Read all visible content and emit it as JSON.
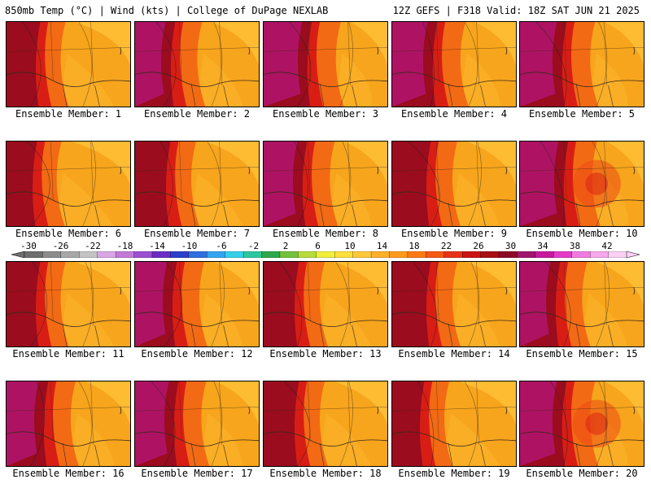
{
  "header": {
    "left": "850mb Temp (°C) | Wind (kts) | College of DuPage NEXLAB",
    "right": "12Z GEFS | F318 Valid: 18Z SAT JUN 21 2025"
  },
  "members": [
    {
      "label": "Ensemble Member: 1",
      "west_intensity": 0.55,
      "hot_core": false
    },
    {
      "label": "Ensemble Member: 2",
      "west_intensity": 0.75,
      "hot_core": false
    },
    {
      "label": "Ensemble Member: 3",
      "west_intensity": 1.0,
      "hot_core": false
    },
    {
      "label": "Ensemble Member: 4",
      "west_intensity": 0.9,
      "hot_core": false
    },
    {
      "label": "Ensemble Member: 5",
      "west_intensity": 0.95,
      "hot_core": false
    },
    {
      "label": "Ensemble Member: 6",
      "west_intensity": 0.45,
      "hot_core": false
    },
    {
      "label": "Ensemble Member: 7",
      "west_intensity": 0.6,
      "hot_core": false
    },
    {
      "label": "Ensemble Member: 8",
      "west_intensity": 0.85,
      "hot_core": false
    },
    {
      "label": "Ensemble Member: 9",
      "west_intensity": 0.7,
      "hot_core": false
    },
    {
      "label": "Ensemble Member: 10",
      "west_intensity": 1.0,
      "hot_core": true
    },
    {
      "label": "Ensemble Member: 11",
      "west_intensity": 0.55,
      "hot_core": false
    },
    {
      "label": "Ensemble Member: 12",
      "west_intensity": 0.8,
      "hot_core": false
    },
    {
      "label": "Ensemble Member: 13",
      "west_intensity": 0.6,
      "hot_core": false
    },
    {
      "label": "Ensemble Member: 14",
      "west_intensity": 0.7,
      "hot_core": false
    },
    {
      "label": "Ensemble Member: 15",
      "west_intensity": 0.75,
      "hot_core": false
    },
    {
      "label": "Ensemble Member: 16",
      "west_intensity": 0.8,
      "hot_core": false
    },
    {
      "label": "Ensemble Member: 17",
      "west_intensity": 0.85,
      "hot_core": false
    },
    {
      "label": "Ensemble Member: 18",
      "west_intensity": 0.6,
      "hot_core": false
    },
    {
      "label": "Ensemble Member: 19",
      "west_intensity": 0.5,
      "hot_core": false
    },
    {
      "label": "Ensemble Member: 20",
      "west_intensity": 0.95,
      "hot_core": true
    }
  ],
  "colorbar": {
    "labels": [
      "-30",
      "-26",
      "-22",
      "-18",
      "-14",
      "-10",
      "-6",
      "-2",
      "2",
      "6",
      "10",
      "14",
      "18",
      "22",
      "26",
      "30",
      "34",
      "38",
      "42"
    ],
    "colors": [
      "#6e6e6e",
      "#8c8c8c",
      "#a8a8a8",
      "#c4c4c4",
      "#d9a6e6",
      "#c27ad9",
      "#9b4fd1",
      "#6a2ec4",
      "#2e3fc8",
      "#2f6fe0",
      "#33a4f0",
      "#36d0e8",
      "#2ec8a0",
      "#2ea84c",
      "#73c23c",
      "#b8dc3c",
      "#f0f03c",
      "#ffe03c",
      "#ffc83c",
      "#ffb02a",
      "#ff9a1a",
      "#ff7a14",
      "#f55a14",
      "#e83214",
      "#cc1414",
      "#a80f14",
      "#8c0a28",
      "#a0146e",
      "#c8189e",
      "#e43cc8",
      "#f07ae0",
      "#f8a8ec",
      "#fcd0f4"
    ]
  }
}
